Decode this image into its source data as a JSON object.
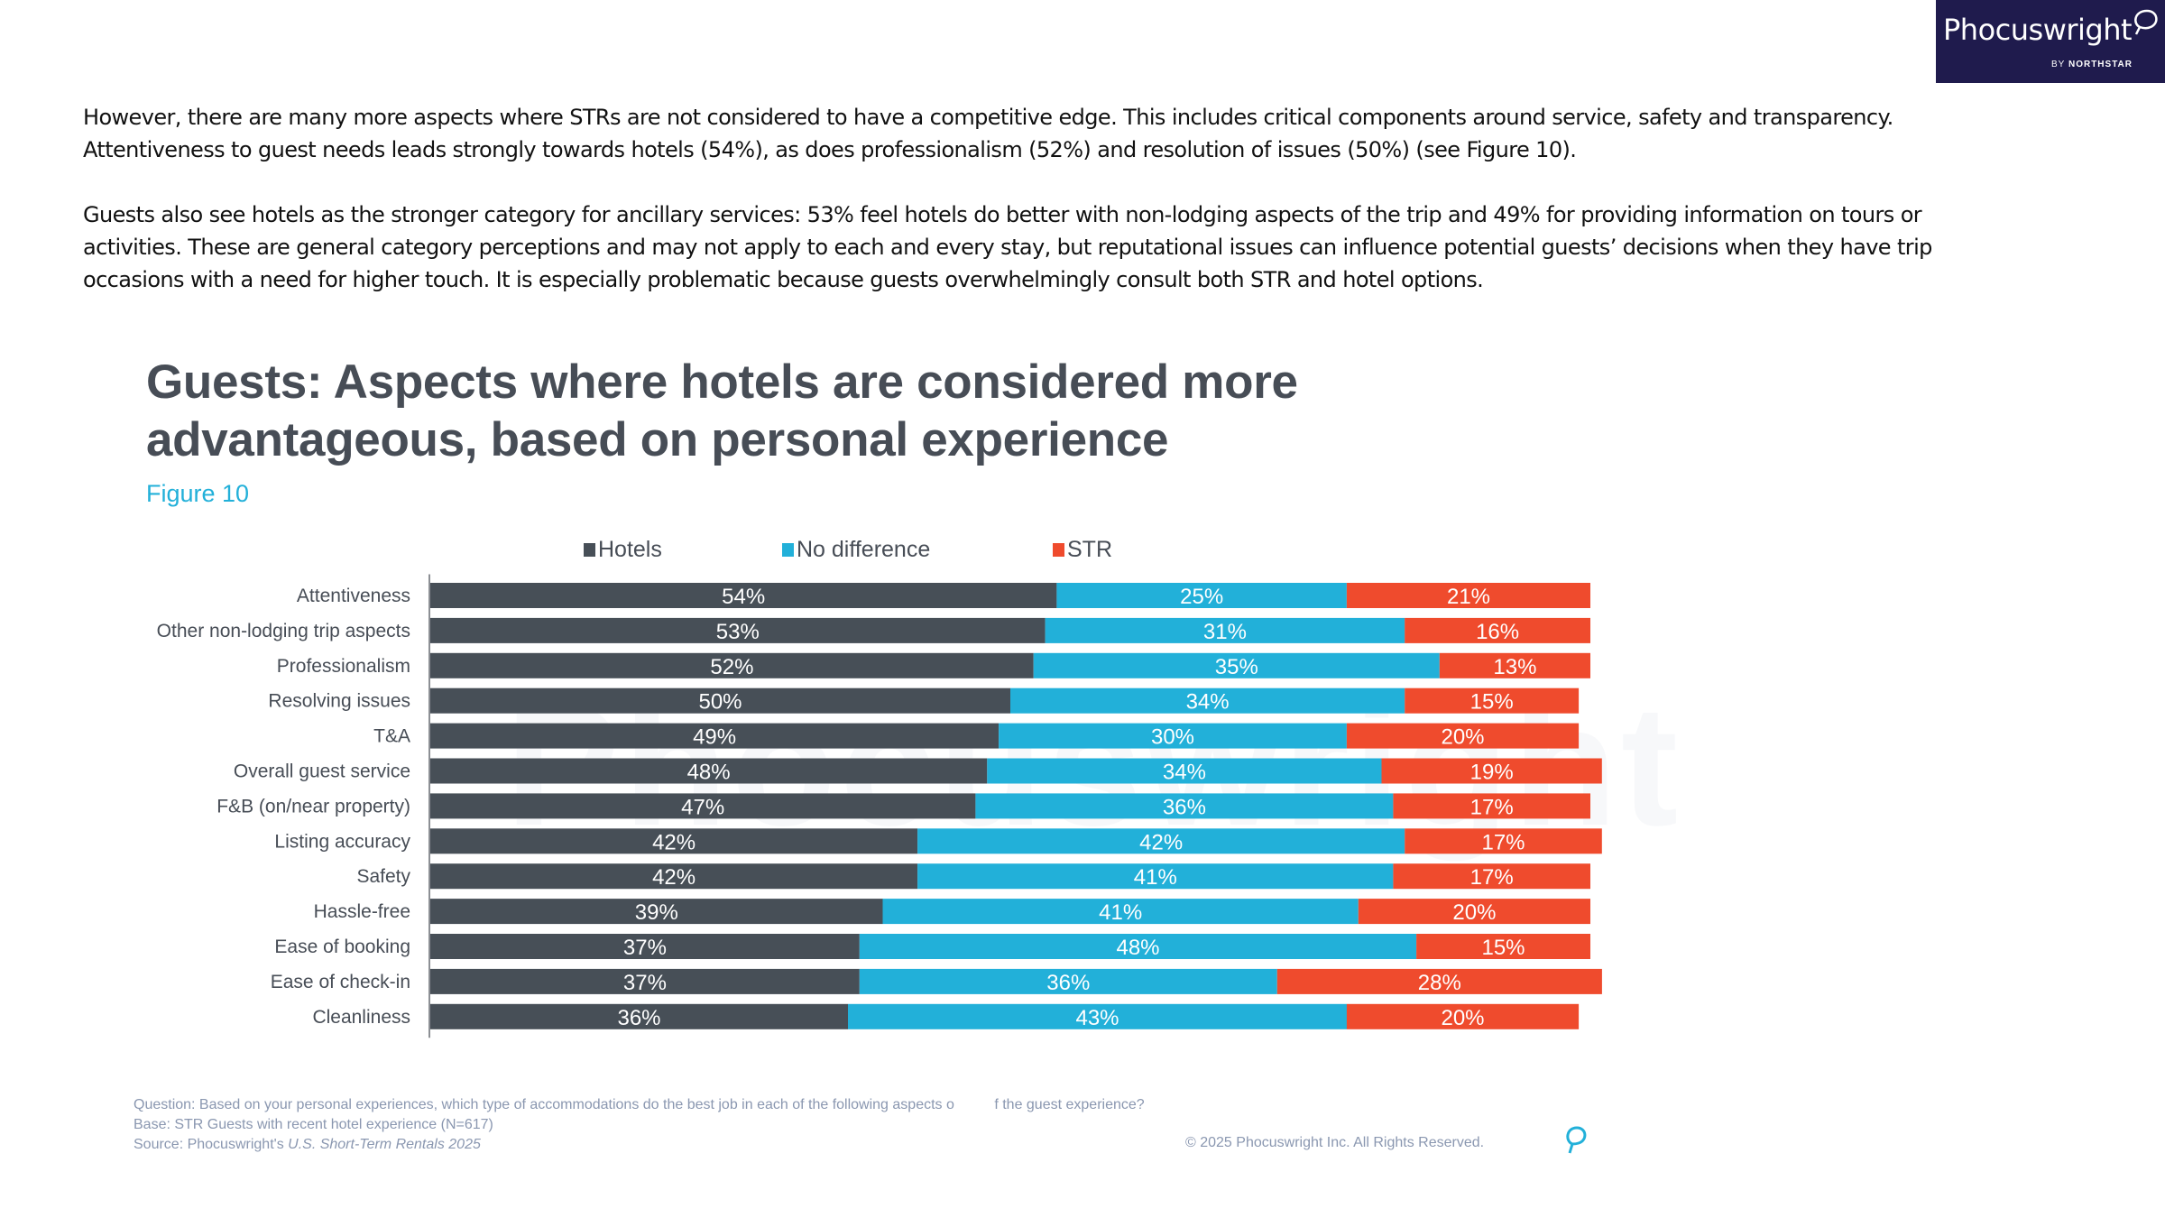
{
  "logo": {
    "brand": "Phocuswright",
    "sub_prefix": "BY",
    "sub_name": "NORTHSTAR"
  },
  "body_text": {
    "paragraphs": [
      "However, there are many more aspects where STRs are not considered to have a competitive edge. This includes critical components around service, safety and transparency. Attentiveness to guest needs leads strongly towards hotels (54%), as does professionalism (52%) and resolution of issues (50%) (see Figure 10).",
      "Guests also see hotels as the stronger category for ancillary services: 53% feel hotels do better with non-lodging aspects of the trip and 49% for providing information on tours or activities. These are general category perceptions and may not apply to each and every stay, but reputational issues can influence potential guests’ decisions when they have trip occasions with a need for higher touch. It is especially problematic because guests overwhelmingly consult both STR and hotel options."
    ]
  },
  "figure": {
    "title_line1": "Guests: Aspects where hotels are considered more",
    "title_line2": "advantageous, based on personal experience",
    "label": "Figure 10",
    "watermark": "Phocuswright"
  },
  "chart_data": {
    "type": "bar",
    "orientation": "horizontal",
    "stacked": true,
    "title": "Guests: Aspects where hotels are considered more advantageous, based on personal experience",
    "subtitle": "Figure 10",
    "xlabel": "",
    "ylabel": "",
    "xlim": [
      0,
      100
    ],
    "grid": false,
    "legend_position": "top",
    "value_suffix": "%",
    "categories": [
      "Attentiveness",
      "Other non-lodging trip aspects",
      "Professionalism",
      "Resolving issues",
      "T&A",
      "Overall guest service",
      "F&B (on/near property)",
      "Listing accuracy",
      "Safety",
      "Hassle-free",
      "Ease of booking",
      "Ease of check-in",
      "Cleanliness"
    ],
    "series": [
      {
        "name": "Hotels",
        "color": "#474f57",
        "values": [
          54,
          53,
          52,
          50,
          49,
          48,
          47,
          42,
          42,
          39,
          37,
          37,
          36
        ]
      },
      {
        "name": "No difference",
        "color": "#22b0d9",
        "values": [
          25,
          31,
          35,
          34,
          30,
          34,
          36,
          42,
          41,
          41,
          48,
          36,
          43
        ]
      },
      {
        "name": "STR",
        "color": "#ef4b2d",
        "values": [
          21,
          16,
          13,
          15,
          20,
          19,
          17,
          17,
          17,
          20,
          15,
          28,
          20
        ]
      }
    ]
  },
  "footer": {
    "question": "Question: Based on your personal experiences, which type of accommodations do the best job in each of the following aspects o          f the guest experience?",
    "base": "Base: STR Guests with recent hotel experience (N=617)",
    "source_prefix": "Source: Phocuswright's ",
    "source_title": "U.S. Short-Term Rentals 2025",
    "copyright": "© 2025 Phocuswright Inc. All Rights Reserved."
  }
}
